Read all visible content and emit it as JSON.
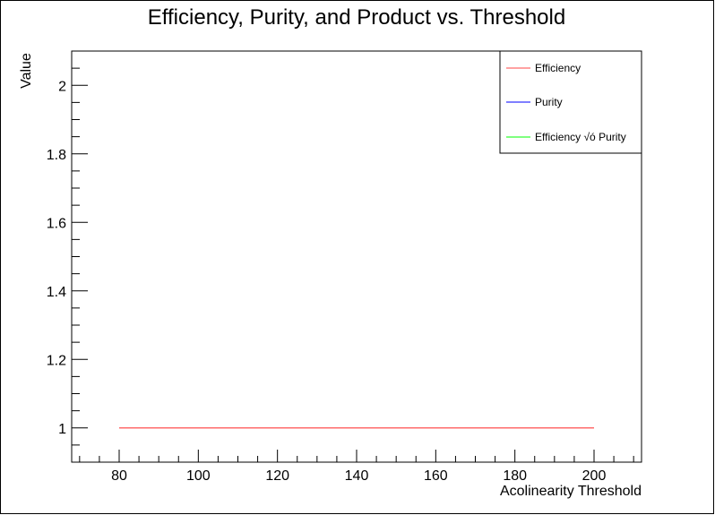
{
  "chart_data": {
    "type": "line",
    "title": "Efficiency, Purity, and Product vs. Threshold",
    "xlabel": "Acolinearity Threshold",
    "ylabel": "Value",
    "xlim": [
      68,
      212
    ],
    "ylim": [
      0.9,
      2.1
    ],
    "x_ticks": [
      80,
      100,
      120,
      140,
      160,
      180,
      200
    ],
    "y_ticks": [
      1,
      1.2,
      1.4,
      1.6,
      1.8,
      2
    ],
    "x_tick_labels": [
      "80",
      "100",
      "120",
      "140",
      "160",
      "180",
      "200"
    ],
    "y_tick_labels": [
      "1",
      "1.2",
      "1.4",
      "1.6",
      "1.8",
      "2"
    ],
    "grid": false,
    "legend_position": "top-right",
    "series": [
      {
        "name": "Efficiency",
        "color": "#ff6b6b",
        "x": [
          80,
          200
        ],
        "y": [
          1,
          1
        ]
      },
      {
        "name": "Purity",
        "color": "#3333ff",
        "x": [],
        "y": []
      },
      {
        "name": "Efficiency √ó Purity",
        "color": "#33ff33",
        "x": [],
        "y": []
      }
    ]
  }
}
